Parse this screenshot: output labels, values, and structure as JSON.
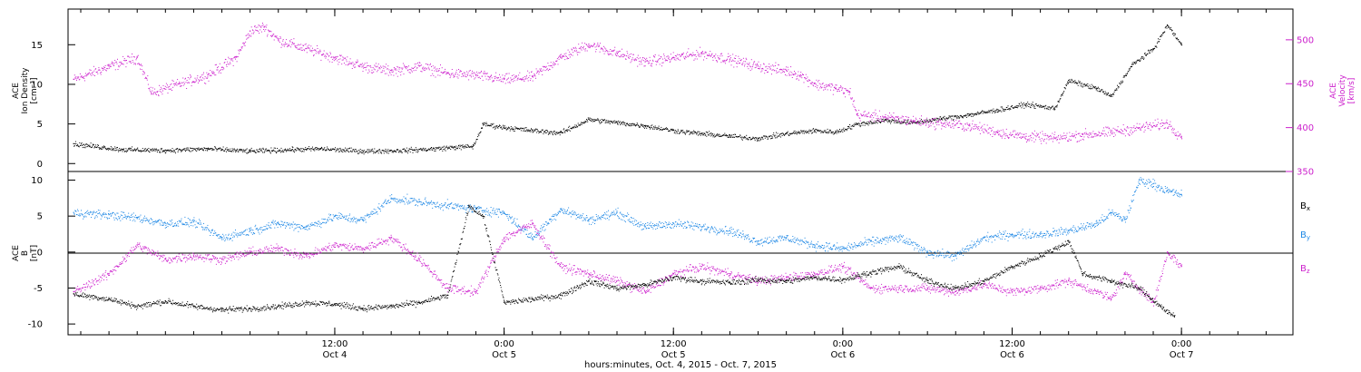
{
  "colors": {
    "black": "#000000",
    "magenta": "#cc1fcc",
    "blue": "#1e88e5",
    "axis": "#000000"
  },
  "x_axis": {
    "ticks": [
      {
        "time": "12:00",
        "day": "Oct 4",
        "hour": 12
      },
      {
        "time": "0:00",
        "day": "Oct 5",
        "hour": 24
      },
      {
        "time": "12:00",
        "day": "Oct 5",
        "hour": 36
      },
      {
        "time": "0:00",
        "day": "Oct 6",
        "hour": 48
      },
      {
        "time": "12:00",
        "day": "Oct 6",
        "hour": 60
      },
      {
        "time": "0:00",
        "day": "Oct 7",
        "hour": 72
      }
    ],
    "title": "hours:minutes, Oct.  4, 2015 - Oct.  7, 2015",
    "range_hours_from_oct4_0000": [
      -6.9,
      79.9
    ]
  },
  "panel1": {
    "left_label_lines": [
      "ACE",
      "Ion Density",
      "[cm⁻³]"
    ],
    "right_label_lines": [
      "ACE",
      "Velocity",
      "[km/s]"
    ],
    "left_ticks": [
      "0",
      "5",
      "10",
      "15"
    ],
    "right_ticks": [
      "350",
      "400",
      "450",
      "500"
    ]
  },
  "panel2": {
    "left_label_lines": [
      "ACE",
      "B",
      "[nT]"
    ],
    "left_ticks": [
      "-10",
      "-5",
      "0",
      "5",
      "10"
    ],
    "legend": [
      {
        "label": "B",
        "sub": "x",
        "color": "#000000"
      },
      {
        "label": "B",
        "sub": "y",
        "color": "#1e88e5"
      },
      {
        "label": "B",
        "sub": "z",
        "color": "#cc1fcc"
      }
    ]
  },
  "chart_data": [
    {
      "type": "scatter",
      "title": "",
      "xlabel": "hours:minutes, Oct.  4, 2015 - Oct.  7, 2015",
      "ylabel": "ACE Ion Density [cm-3]",
      "ylabel_right": "ACE Velocity [km/s]",
      "ylim": [
        -1,
        19.5
      ],
      "ylim_right": [
        350,
        535
      ],
      "x_units": "hours from Oct 4 0:00",
      "grid": false,
      "series": [
        {
          "name": "Ion Density",
          "axis": "left",
          "color": "#000000",
          "points": [
            [
              -6.5,
              2.5
            ],
            [
              -3,
              1.8
            ],
            [
              0,
              1.7
            ],
            [
              3,
              1.9
            ],
            [
              6,
              1.6
            ],
            [
              9,
              1.8
            ],
            [
              11,
              1.9
            ],
            [
              14,
              1.6
            ],
            [
              17,
              1.7
            ],
            [
              19,
              1.9
            ],
            [
              20.5,
              2.1
            ],
            [
              21.8,
              2.2
            ],
            [
              22.5,
              5.0
            ],
            [
              24,
              4.6
            ],
            [
              26,
              4.2
            ],
            [
              28,
              3.9
            ],
            [
              30,
              5.6
            ],
            [
              32,
              5.2
            ],
            [
              34,
              4.8
            ],
            [
              36,
              4.2
            ],
            [
              38,
              3.8
            ],
            [
              40,
              3.5
            ],
            [
              42,
              3.2
            ],
            [
              44,
              3.8
            ],
            [
              46,
              4.2
            ],
            [
              47.5,
              4.0
            ],
            [
              49,
              5.0
            ],
            [
              51,
              5.5
            ],
            [
              53,
              5.2
            ],
            [
              55,
              5.7
            ],
            [
              57,
              6.2
            ],
            [
              59,
              6.8
            ],
            [
              61,
              7.5
            ],
            [
              63,
              7.0
            ],
            [
              64,
              10.5
            ],
            [
              66,
              9.5
            ],
            [
              67,
              8.5
            ],
            [
              68.5,
              12.5
            ],
            [
              70,
              14.5
            ],
            [
              71,
              17.5
            ],
            [
              72,
              15.0
            ]
          ]
        },
        {
          "name": "Velocity",
          "axis": "right",
          "color": "#cc1fcc",
          "points": [
            [
              -6.5,
              455
            ],
            [
              -4,
              470
            ],
            [
              -2,
              480
            ],
            [
              -1,
              440
            ],
            [
              1,
              450
            ],
            [
              3,
              460
            ],
            [
              5,
              480
            ],
            [
              6,
              510
            ],
            [
              7,
              515
            ],
            [
              8,
              500
            ],
            [
              10,
              490
            ],
            [
              12,
              480
            ],
            [
              14,
              470
            ],
            [
              16,
              465
            ],
            [
              18,
              470
            ],
            [
              20,
              462
            ],
            [
              22,
              460
            ],
            [
              24,
              455
            ],
            [
              26,
              458
            ],
            [
              28,
              480
            ],
            [
              30,
              495
            ],
            [
              32,
              485
            ],
            [
              34,
              475
            ],
            [
              36,
              480
            ],
            [
              38,
              485
            ],
            [
              40,
              478
            ],
            [
              42,
              470
            ],
            [
              44,
              465
            ],
            [
              45,
              460
            ],
            [
              46,
              450
            ],
            [
              47.5,
              445
            ],
            [
              48.5,
              440
            ],
            [
              49,
              415
            ],
            [
              51,
              412
            ],
            [
              53,
              408
            ],
            [
              55,
              405
            ],
            [
              57,
              402
            ],
            [
              59,
              395
            ],
            [
              61,
              390
            ],
            [
              63,
              388
            ],
            [
              65,
              392
            ],
            [
              67,
              395
            ],
            [
              69,
              400
            ],
            [
              71,
              405
            ],
            [
              72,
              390
            ]
          ]
        }
      ]
    },
    {
      "type": "scatter",
      "title": "",
      "xlabel": "hours:minutes, Oct.  4, 2015 - Oct.  7, 2015",
      "ylabel": "ACE B [nT]",
      "ylim": [
        -11.5,
        11.2
      ],
      "x_units": "hours from Oct 4 0:00",
      "grid": false,
      "reference_line_y": 0,
      "series": [
        {
          "name": "Bx",
          "color": "#000000",
          "points": [
            [
              -6.5,
              -5.8
            ],
            [
              -4,
              -6.5
            ],
            [
              -2,
              -7.5
            ],
            [
              0,
              -6.8
            ],
            [
              2,
              -7.5
            ],
            [
              4,
              -8.0
            ],
            [
              6,
              -7.8
            ],
            [
              8,
              -7.5
            ],
            [
              10,
              -7.0
            ],
            [
              12,
              -7.2
            ],
            [
              14,
              -7.8
            ],
            [
              16,
              -7.5
            ],
            [
              18,
              -7.0
            ],
            [
              20,
              -6.0
            ],
            [
              21.5,
              6.5
            ],
            [
              22.5,
              5.0
            ],
            [
              24,
              -7.0
            ],
            [
              26,
              -6.5
            ],
            [
              28,
              -6.0
            ],
            [
              30,
              -4.0
            ],
            [
              32,
              -5.0
            ],
            [
              34,
              -4.5
            ],
            [
              36,
              -3.5
            ],
            [
              38,
              -4.0
            ],
            [
              40,
              -4.2
            ],
            [
              42,
              -3.8
            ],
            [
              44,
              -4.0
            ],
            [
              46,
              -3.5
            ],
            [
              48,
              -3.8
            ],
            [
              50,
              -2.8
            ],
            [
              52,
              -2.0
            ],
            [
              54,
              -4.0
            ],
            [
              56,
              -5.0
            ],
            [
              58,
              -4.0
            ],
            [
              60,
              -2.0
            ],
            [
              62,
              -0.5
            ],
            [
              64,
              1.5
            ],
            [
              65,
              -3.0
            ],
            [
              67,
              -4.0
            ],
            [
              69,
              -5.0
            ],
            [
              70.5,
              -7.5
            ],
            [
              71.5,
              -9.0
            ]
          ]
        },
        {
          "name": "By",
          "color": "#1e88e5",
          "points": [
            [
              -6.5,
              5.5
            ],
            [
              -4,
              5.2
            ],
            [
              -2,
              4.8
            ],
            [
              0,
              4.0
            ],
            [
              2,
              4.2
            ],
            [
              4,
              2.0
            ],
            [
              6,
              3.0
            ],
            [
              8,
              4.0
            ],
            [
              10,
              3.5
            ],
            [
              12,
              5.0
            ],
            [
              14,
              4.5
            ],
            [
              16,
              7.5
            ],
            [
              18,
              7.0
            ],
            [
              20,
              6.5
            ],
            [
              22,
              6.0
            ],
            [
              24,
              5.5
            ],
            [
              26,
              2.0
            ],
            [
              28,
              6.0
            ],
            [
              30,
              4.5
            ],
            [
              32,
              5.5
            ],
            [
              34,
              3.5
            ],
            [
              36,
              4.0
            ],
            [
              38,
              3.5
            ],
            [
              40,
              3.0
            ],
            [
              42,
              1.5
            ],
            [
              44,
              2.0
            ],
            [
              46,
              1.0
            ],
            [
              48,
              0.5
            ],
            [
              50,
              1.5
            ],
            [
              52,
              2.0
            ],
            [
              54,
              0.0
            ],
            [
              56,
              -0.5
            ],
            [
              58,
              2.0
            ],
            [
              60,
              2.5
            ],
            [
              62,
              2.5
            ],
            [
              64,
              3.0
            ],
            [
              66,
              4.0
            ],
            [
              67,
              5.5
            ],
            [
              68,
              4.5
            ],
            [
              69,
              10.0
            ],
            [
              70,
              9.5
            ],
            [
              71,
              8.5
            ],
            [
              72,
              8.0
            ]
          ]
        },
        {
          "name": "Bz",
          "color": "#cc1fcc",
          "points": [
            [
              -6.5,
              -5.5
            ],
            [
              -4,
              -3.0
            ],
            [
              -2,
              1.0
            ],
            [
              0,
              -1.0
            ],
            [
              2,
              -0.5
            ],
            [
              4,
              -1.0
            ],
            [
              6,
              0.0
            ],
            [
              8,
              0.5
            ],
            [
              10,
              -0.5
            ],
            [
              12,
              1.0
            ],
            [
              14,
              0.5
            ],
            [
              16,
              2.0
            ],
            [
              18,
              -1.0
            ],
            [
              20,
              -5.0
            ],
            [
              22,
              -5.5
            ],
            [
              24,
              2.0
            ],
            [
              26,
              4.0
            ],
            [
              28,
              -2.0
            ],
            [
              30,
              -3.0
            ],
            [
              32,
              -4.0
            ],
            [
              34,
              -5.5
            ],
            [
              36,
              -3.0
            ],
            [
              38,
              -2.0
            ],
            [
              40,
              -3.0
            ],
            [
              42,
              -4.0
            ],
            [
              44,
              -3.5
            ],
            [
              46,
              -3.0
            ],
            [
              48,
              -2.0
            ],
            [
              50,
              -5.0
            ],
            [
              52,
              -5.0
            ],
            [
              54,
              -5.0
            ],
            [
              56,
              -5.5
            ],
            [
              58,
              -4.5
            ],
            [
              60,
              -5.5
            ],
            [
              62,
              -5.0
            ],
            [
              64,
              -4.0
            ],
            [
              66,
              -5.5
            ],
            [
              67,
              -6.5
            ],
            [
              68,
              -3.0
            ],
            [
              69,
              -5.0
            ],
            [
              70,
              -7.0
            ],
            [
              71,
              0.0
            ],
            [
              72,
              -2.0
            ]
          ]
        }
      ]
    }
  ]
}
